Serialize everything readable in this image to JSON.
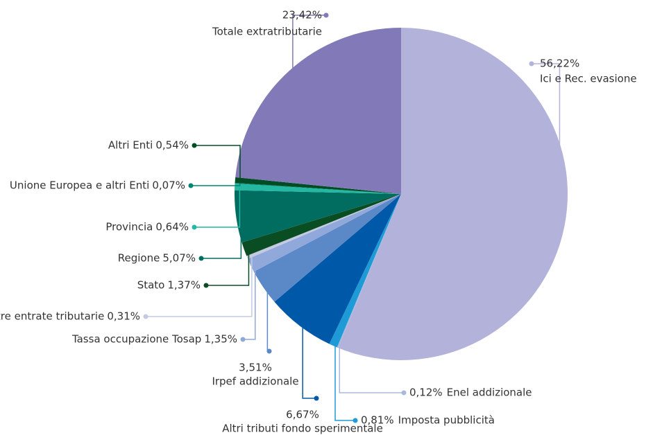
{
  "chart_data": {
    "type": "pie",
    "categories": [
      "Ici e Rec. evasione",
      "Enel addizionale",
      "Imposta pubblicità",
      "Altri tributi fondo sperimentale",
      "Irpef addizionale",
      "Tassa occupazione Tosap",
      "Altre entrate tributarie",
      "Stato",
      "Regione",
      "Provincia",
      "Unione Europea e altri Enti",
      "Altri Enti",
      "Totale extratributarie"
    ],
    "values": [
      56.22,
      0.12,
      0.81,
      6.67,
      3.51,
      1.35,
      0.31,
      1.37,
      5.07,
      0.64,
      0.07,
      0.54,
      23.42
    ],
    "value_labels": [
      "56,22%",
      "0,12%",
      "0,81%",
      "6,67%",
      "3,51%",
      "1,35%",
      "0,31%",
      "1,37%",
      "5,07%",
      "0,64%",
      "0,07%",
      "0,54%",
      "23,42%"
    ],
    "colors": [
      "#b3b2da",
      "#a9b9de",
      "#1e9ad6",
      "#0058a9",
      "#5b88c6",
      "#91a8da",
      "#c3cae2",
      "#0b4d22",
      "#006d60",
      "#22b8a2",
      "#008574",
      "#004d25",
      "#8279b8"
    ]
  }
}
